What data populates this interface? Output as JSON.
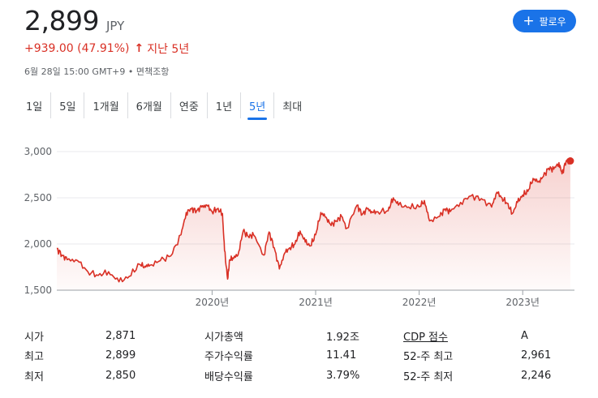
{
  "quote": {
    "price": "2,899",
    "currency": "JPY",
    "change": "+939.00 (47.91%)",
    "change_arrow": "↑",
    "period_label": "지난 5년",
    "timestamp": "6월 28일 15:00 GMT+9 • 면책조항",
    "follow_label": "팔로우",
    "accent_color": "#1a73e8",
    "change_color": "#d93025"
  },
  "tabs": [
    "1일",
    "5일",
    "1개월",
    "6개월",
    "연중",
    "1년",
    "5년",
    "최대"
  ],
  "active_tab": "5년",
  "chart_data": {
    "type": "area",
    "title": "",
    "xlabel": "",
    "ylabel": "",
    "ylim": [
      1500,
      3000
    ],
    "yticks": [
      "3,000",
      "2,500",
      "2,000",
      "1,500"
    ],
    "ytick_values": [
      3000,
      2500,
      2000,
      1500
    ],
    "xticks": [
      "2020년",
      "2021년",
      "2022년",
      "2023년"
    ],
    "xtick_values": [
      2020.0,
      2021.0,
      2022.0,
      2023.0
    ],
    "xlim": [
      2018.5,
      2023.5
    ],
    "line_color": "#d93025",
    "series": [
      {
        "x": [
          2018.5,
          2018.55,
          2018.6,
          2018.7,
          2018.8,
          2018.9,
          2019.0,
          2019.1,
          2019.2,
          2019.3,
          2019.35,
          2019.4,
          2019.5,
          2019.6,
          2019.7,
          2019.75,
          2019.8,
          2019.85,
          2019.9,
          2019.95,
          2020.0,
          2020.05,
          2020.1,
          2020.12,
          2020.15,
          2020.17,
          2020.2,
          2020.25,
          2020.3,
          2020.35,
          2020.4,
          2020.5,
          2020.55,
          2020.6,
          2020.65,
          2020.7,
          2020.75,
          2020.8,
          2020.85,
          2020.9,
          2020.95,
          2021.0,
          2021.05,
          2021.1,
          2021.15,
          2021.2,
          2021.25,
          2021.3,
          2021.4,
          2021.45,
          2021.5,
          2021.55,
          2021.6,
          2021.7,
          2021.75,
          2021.8,
          2021.9,
          2022.0,
          2022.05,
          2022.1,
          2022.2,
          2022.25,
          2022.3,
          2022.4,
          2022.5,
          2022.6,
          2022.7,
          2022.75,
          2022.8,
          2022.85,
          2022.9,
          2022.95,
          2023.0,
          2023.05,
          2023.1,
          2023.15,
          2023.2,
          2023.25,
          2023.3,
          2023.35,
          2023.38,
          2023.42,
          2023.46
        ],
        "y": [
          1950,
          1880,
          1830,
          1820,
          1700,
          1660,
          1700,
          1590,
          1650,
          1780,
          1760,
          1770,
          1820,
          1870,
          2100,
          2340,
          2380,
          2360,
          2400,
          2420,
          2350,
          2380,
          2330,
          1930,
          1620,
          1830,
          1850,
          1880,
          2140,
          2080,
          2100,
          1880,
          2130,
          1960,
          1730,
          1900,
          1960,
          2000,
          2140,
          2020,
          1980,
          2100,
          2340,
          2290,
          2200,
          2250,
          2300,
          2170,
          2420,
          2320,
          2380,
          2340,
          2350,
          2360,
          2500,
          2420,
          2400,
          2400,
          2470,
          2250,
          2300,
          2380,
          2350,
          2450,
          2520,
          2490,
          2400,
          2560,
          2500,
          2440,
          2330,
          2450,
          2530,
          2570,
          2710,
          2670,
          2730,
          2820,
          2810,
          2880,
          2760,
          2900,
          2899
        ]
      }
    ]
  },
  "stats": {
    "rows": [
      {
        "l1": "시가",
        "v1": "2,871",
        "l2": "시가총액",
        "v2": "1.92조",
        "l3": "CDP 점수",
        "v3": "A"
      },
      {
        "l1": "최고",
        "v1": "2,899",
        "l2": "주가수익률",
        "v2": "11.41",
        "l3": "52-주 최고",
        "v3": "2,961"
      },
      {
        "l1": "최저",
        "v1": "2,850",
        "l2": "배당수익률",
        "v2": "3.79%",
        "l3": "52-주 최저",
        "v3": "2,246"
      }
    ]
  }
}
